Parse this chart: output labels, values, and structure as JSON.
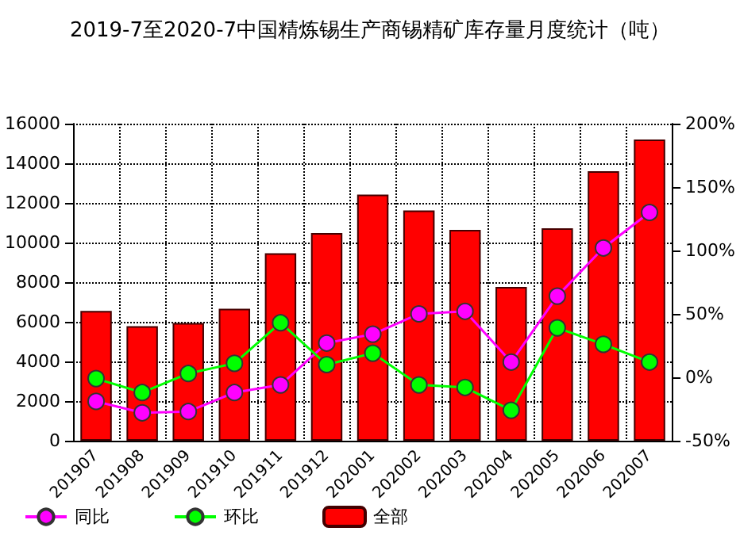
{
  "chart_data": {
    "type": "bar",
    "title": "2019-7至2020-7中国精炼锡生产商锡精矿库存量月度统计（吨）",
    "categories": [
      "201907",
      "201908",
      "201909",
      "201910",
      "201911",
      "201912",
      "202001",
      "202002",
      "202003",
      "202004",
      "202005",
      "202006",
      "202007"
    ],
    "series": [
      {
        "name": "同比",
        "type": "line",
        "axis": "y2",
        "color": "#ff00ff",
        "values": [
          -19,
          -28,
          -27,
          -12,
          -6,
          27,
          34,
          50,
          52,
          12,
          64,
          102,
          130
        ]
      },
      {
        "name": "环比",
        "type": "line",
        "axis": "y2",
        "color": "#00ff00",
        "values": [
          -1,
          -12,
          3,
          11,
          43,
          10,
          19,
          -6,
          -8,
          -26,
          39,
          26,
          12
        ]
      },
      {
        "name": "全部",
        "color": "#ff0000",
        "values": [
          6550,
          5780,
          5940,
          6660,
          9460,
          10480,
          12420,
          11620,
          10640,
          7760,
          10720,
          13600,
          15200
        ]
      }
    ],
    "ylim": [
      0,
      16000
    ],
    "yticks": [
      0,
      2000,
      4000,
      6000,
      8000,
      10000,
      12000,
      14000,
      16000
    ],
    "y2lim": [
      -50,
      200
    ],
    "y2ticks": [
      {
        "value": -50,
        "label": "-50%"
      },
      {
        "value": 0,
        "label": "0%"
      },
      {
        "value": 50,
        "label": "50%"
      },
      {
        "value": 100,
        "label": "100%"
      },
      {
        "value": 150,
        "label": "150%"
      },
      {
        "value": 200,
        "label": "200%"
      }
    ],
    "grid": true,
    "legend": "bottom",
    "marker": "circle",
    "line_style": "solid"
  }
}
